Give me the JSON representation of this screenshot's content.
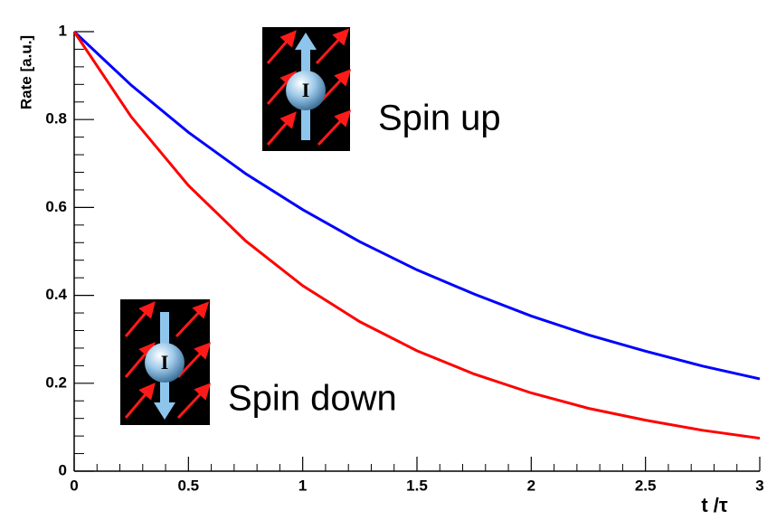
{
  "chart_data": {
    "type": "line",
    "x_label": "t /τ",
    "y_label": "Rate [a.u.]",
    "x": [
      0,
      0.25,
      0.5,
      0.75,
      1,
      1.25,
      1.5,
      1.75,
      2,
      2.25,
      2.5,
      2.75,
      3
    ],
    "series": [
      {
        "name": "Spin up",
        "color": "#0000ff",
        "label_color": "#0a0a80",
        "values": [
          1,
          0.878,
          0.771,
          0.677,
          0.595,
          0.522,
          0.458,
          0.403,
          0.353,
          0.31,
          0.273,
          0.239,
          0.21
        ]
      },
      {
        "name": "Spin down",
        "color": "#ff0000",
        "label_color": "#8b1a1a",
        "values": [
          1,
          0.806,
          0.65,
          0.524,
          0.422,
          0.34,
          0.274,
          0.221,
          0.178,
          0.143,
          0.116,
          0.093,
          0.075
        ]
      }
    ],
    "icon_label": "I",
    "xlim": [
      0,
      3
    ],
    "xticks": [
      0,
      0.5,
      1,
      1.5,
      2,
      2.5,
      3
    ],
    "ylim": [
      0,
      1
    ],
    "yticks": [
      0,
      0.2,
      0.4,
      0.6,
      0.8,
      1
    ],
    "grid": false
  }
}
